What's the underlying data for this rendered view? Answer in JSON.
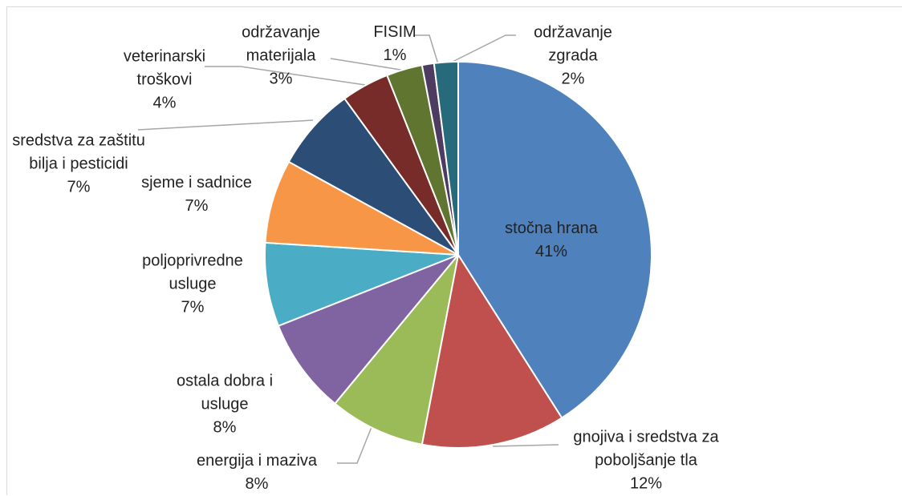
{
  "chart_data": {
    "type": "pie",
    "categories": [
      "stočna hrana",
      "gnojiva i sredstva za poboljšanje tla",
      "energija i maziva",
      "ostala dobra i usluge",
      "poljoprivredne usluge",
      "sjeme i sadnice",
      "sredstva za zaštitu bilja i pesticidi",
      "veterinarski troškovi",
      "održavanje materijala",
      "FISIM",
      "održavanje zgrada"
    ],
    "values": [
      41,
      12,
      8,
      8,
      7,
      7,
      7,
      4,
      3,
      1,
      2
    ],
    "value_labels": [
      "41%",
      "12%",
      "8%",
      "8%",
      "7%",
      "7%",
      "7%",
      "4%",
      "3%",
      "1%",
      "2%"
    ],
    "colors": [
      "#4f81bd",
      "#c0504d",
      "#9bbb59",
      "#8064a2",
      "#4bacc6",
      "#f79646",
      "#2c4d75",
      "#772c2a",
      "#5f7530",
      "#4d3b62",
      "#276a7c"
    ]
  }
}
